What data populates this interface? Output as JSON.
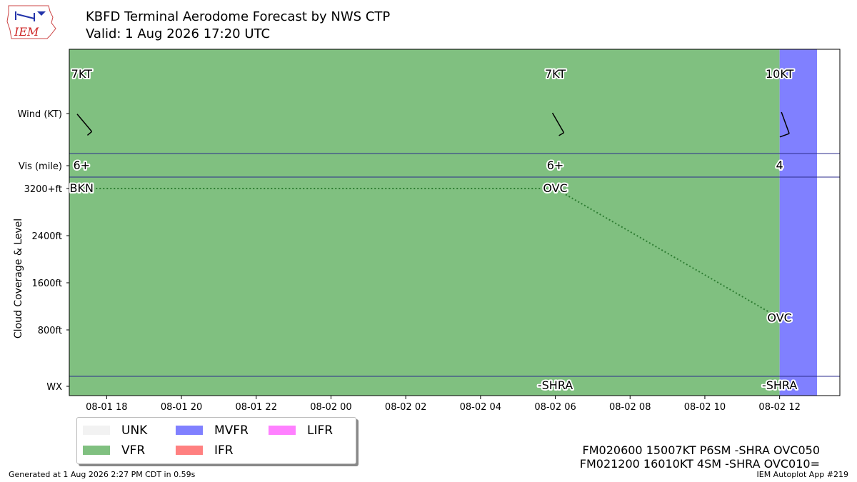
{
  "header": {
    "title": "KBFD Terminal Aerodome Forecast by NWS CTP",
    "subtitle": "Valid: 1 Aug 2026 17:20 UTC",
    "logo_text": "IEM"
  },
  "chart_data": {
    "type": "taf-timeline",
    "x_ticks": [
      {
        "label": "08-01 18",
        "hour": 18
      },
      {
        "label": "08-01 20",
        "hour": 20
      },
      {
        "label": "08-01 22",
        "hour": 22
      },
      {
        "label": "08-02 00",
        "hour": 24
      },
      {
        "label": "08-02 02",
        "hour": 26
      },
      {
        "label": "08-02 04",
        "hour": 28
      },
      {
        "label": "08-02 06",
        "hour": 30
      },
      {
        "label": "08-02 08",
        "hour": 32
      },
      {
        "label": "08-02 10",
        "hour": 34
      },
      {
        "label": "08-02 12",
        "hour": 36
      }
    ],
    "x_range_hours": [
      17.0,
      36.0
    ],
    "rows": {
      "wind_label": "Wind (KT)",
      "vis_label": "Vis (mile)",
      "cloud_label": "Cloud Coverage & Level",
      "wx_label": "WX"
    },
    "cloud_ticks": [
      {
        "label": "3200+ft",
        "value": 3200
      },
      {
        "label": "2400ft",
        "value": 2400
      },
      {
        "label": "1600ft",
        "value": 1600
      },
      {
        "label": "800ft",
        "value": 800
      }
    ],
    "cloud_range_ft": [
      0,
      3200
    ],
    "categories": [
      {
        "start_hour": 17.0,
        "end_hour": 36.0,
        "category": "VFR"
      },
      {
        "start_hour": 36.0,
        "end_hour": 37.0,
        "category": "MVFR"
      }
    ],
    "forecasts": [
      {
        "hour": 17.33,
        "wind_dir": 140,
        "wind_speed_kt": 7,
        "wind_label": "7KT",
        "vis": "6+",
        "cloud_cover": "BKN",
        "cloud_level_ft": 3200,
        "wx": ""
      },
      {
        "hour": 30.0,
        "wind_dir": 150,
        "wind_speed_kt": 7,
        "wind_label": "7KT",
        "vis": "6+",
        "cloud_cover": "OVC",
        "cloud_level_ft": 3200,
        "wx": "-SHRA"
      },
      {
        "hour": 36.0,
        "wind_dir": 160,
        "wind_speed_kt": 10,
        "wind_label": "10KT",
        "vis": "4",
        "cloud_cover": "OVC",
        "cloud_level_ft": 1000,
        "wx": "-SHRA"
      }
    ]
  },
  "legend": {
    "items": [
      {
        "label": "UNK",
        "color": "#f2f2f2"
      },
      {
        "label": "VFR",
        "color": "#80c080"
      },
      {
        "label": "MVFR",
        "color": "#8080ff"
      },
      {
        "label": "IFR",
        "color": "#ff8080"
      },
      {
        "label": "LIFR",
        "color": "#ff80ff"
      }
    ]
  },
  "raw_taf": {
    "line1": "FM020600 15007KT P6SM -SHRA OVC050",
    "line2": "FM021200 16010KT 4SM -SHRA OVC010="
  },
  "footer": {
    "generated": "Generated at 1 Aug 2026 2:27 PM CDT in 0.59s",
    "app": "IEM Autoplot App #219"
  },
  "colors": {
    "VFR": "#80c080",
    "MVFR": "#8080ff",
    "divider": "#2b2b8c",
    "cloud_line": "#2e7d32"
  }
}
